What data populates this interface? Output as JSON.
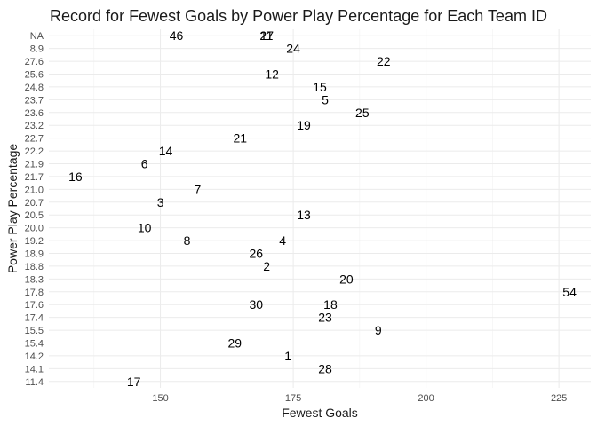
{
  "chart_data": {
    "type": "scatter",
    "title": "Record for Fewest Goals by Power Play Percentage for Each Team ID",
    "xlabel": "Fewest Goals",
    "ylabel": "Power Play Percentage",
    "xlim": [
      129,
      231
    ],
    "x_ticks": [
      150,
      175,
      200,
      225
    ],
    "y_categories": [
      "11.4",
      "14.1",
      "14.2",
      "15.4",
      "15.5",
      "17.4",
      "17.6",
      "17.8",
      "18.3",
      "18.8",
      "18.9",
      "19.2",
      "20.0",
      "20.5",
      "20.7",
      "21.0",
      "21.7",
      "21.9",
      "22.2",
      "22.7",
      "23.2",
      "23.6",
      "23.7",
      "24.8",
      "25.6",
      "27.6",
      "8.9",
      "NA"
    ],
    "grid": true,
    "points": [
      {
        "label": "46",
        "x": 153,
        "y": "NA"
      },
      {
        "label": "27",
        "x": 170,
        "y": "NA"
      },
      {
        "label": "11",
        "x": 170,
        "y": "NA"
      },
      {
        "label": "24",
        "x": 175,
        "y": "8.9"
      },
      {
        "label": "22",
        "x": 192,
        "y": "27.6"
      },
      {
        "label": "12",
        "x": 171,
        "y": "25.6"
      },
      {
        "label": "15",
        "x": 180,
        "y": "24.8"
      },
      {
        "label": "5",
        "x": 181,
        "y": "23.7"
      },
      {
        "label": "25",
        "x": 188,
        "y": "23.6"
      },
      {
        "label": "19",
        "x": 177,
        "y": "23.2"
      },
      {
        "label": "21",
        "x": 165,
        "y": "22.7"
      },
      {
        "label": "14",
        "x": 151,
        "y": "22.2"
      },
      {
        "label": "6",
        "x": 147,
        "y": "21.9"
      },
      {
        "label": "16",
        "x": 134,
        "y": "21.7"
      },
      {
        "label": "7",
        "x": 157,
        "y": "21.0"
      },
      {
        "label": "3",
        "x": 150,
        "y": "20.7"
      },
      {
        "label": "13",
        "x": 177,
        "y": "20.5"
      },
      {
        "label": "10",
        "x": 147,
        "y": "20.0"
      },
      {
        "label": "8",
        "x": 155,
        "y": "19.2"
      },
      {
        "label": "4",
        "x": 173,
        "y": "19.2"
      },
      {
        "label": "26",
        "x": 168,
        "y": "18.9"
      },
      {
        "label": "2",
        "x": 170,
        "y": "18.8"
      },
      {
        "label": "20",
        "x": 185,
        "y": "18.3"
      },
      {
        "label": "54",
        "x": 227,
        "y": "17.8"
      },
      {
        "label": "30",
        "x": 168,
        "y": "17.6"
      },
      {
        "label": "18",
        "x": 182,
        "y": "17.6"
      },
      {
        "label": "23",
        "x": 181,
        "y": "17.4"
      },
      {
        "label": "9",
        "x": 191,
        "y": "15.5"
      },
      {
        "label": "29",
        "x": 164,
        "y": "15.4"
      },
      {
        "label": "1",
        "x": 174,
        "y": "14.2"
      },
      {
        "label": "28",
        "x": 181,
        "y": "14.1"
      },
      {
        "label": "17",
        "x": 145,
        "y": "11.4"
      }
    ]
  }
}
